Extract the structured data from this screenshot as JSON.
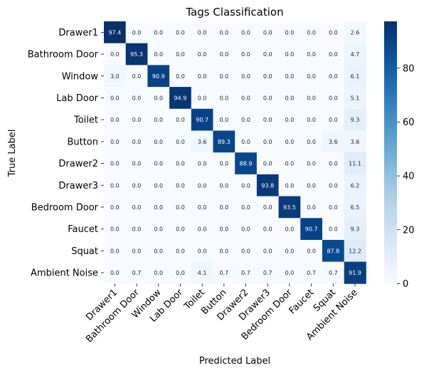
{
  "chart_data": {
    "type": "heatmap",
    "title": "Tags Classification",
    "xlabel": "Predicted Label",
    "ylabel": "True Label",
    "x_categories": [
      "Drawer1",
      "Bathroom Door",
      "Window",
      "Lab Door",
      "Toilet",
      "Button",
      "Drawer2",
      "Drawer3",
      "Bedroom Door",
      "Faucet",
      "Squat",
      "Ambient Noise"
    ],
    "y_categories": [
      "Drawer1",
      "Bathroom Door",
      "Window",
      "Lab Door",
      "Toilet",
      "Button",
      "Drawer2",
      "Drawer3",
      "Bedroom Door",
      "Faucet",
      "Squat",
      "Ambient Noise"
    ],
    "values": [
      [
        97.4,
        0.0,
        0.0,
        0.0,
        0.0,
        0.0,
        0.0,
        0.0,
        0.0,
        0.0,
        0.0,
        2.6
      ],
      [
        0.0,
        95.3,
        0.0,
        0.0,
        0.0,
        0.0,
        0.0,
        0.0,
        0.0,
        0.0,
        0.0,
        4.7
      ],
      [
        3.0,
        0.0,
        90.9,
        0.0,
        0.0,
        0.0,
        0.0,
        0.0,
        0.0,
        0.0,
        0.0,
        6.1
      ],
      [
        0.0,
        0.0,
        0.0,
        94.9,
        0.0,
        0.0,
        0.0,
        0.0,
        0.0,
        0.0,
        0.0,
        5.1
      ],
      [
        0.0,
        0.0,
        0.0,
        0.0,
        90.7,
        0.0,
        0.0,
        0.0,
        0.0,
        0.0,
        0.0,
        9.3
      ],
      [
        0.0,
        0.0,
        0.0,
        0.0,
        3.6,
        89.3,
        0.0,
        0.0,
        0.0,
        0.0,
        3.6,
        3.6
      ],
      [
        0.0,
        0.0,
        0.0,
        0.0,
        0.0,
        0.0,
        88.9,
        0.0,
        0.0,
        0.0,
        0.0,
        11.1
      ],
      [
        0.0,
        0.0,
        0.0,
        0.0,
        0.0,
        0.0,
        0.0,
        93.8,
        0.0,
        0.0,
        0.0,
        6.2
      ],
      [
        0.0,
        0.0,
        0.0,
        0.0,
        0.0,
        0.0,
        0.0,
        0.0,
        93.5,
        0.0,
        0.0,
        6.5
      ],
      [
        0.0,
        0.0,
        0.0,
        0.0,
        0.0,
        0.0,
        0.0,
        0.0,
        0.0,
        90.7,
        0.0,
        9.3
      ],
      [
        0.0,
        0.0,
        0.0,
        0.0,
        0.0,
        0.0,
        0.0,
        0.0,
        0.0,
        0.0,
        87.8,
        12.2
      ],
      [
        0.0,
        0.7,
        0.0,
        0.0,
        4.1,
        0.7,
        0.7,
        0.7,
        0.0,
        0.7,
        0.7,
        91.9
      ]
    ],
    "colorbar": {
      "range": [
        0,
        97.4
      ],
      "ticks": [
        0,
        20,
        40,
        60,
        80
      ],
      "colormap": "Blues"
    },
    "grid": false,
    "legend": "colorbar-right"
  }
}
